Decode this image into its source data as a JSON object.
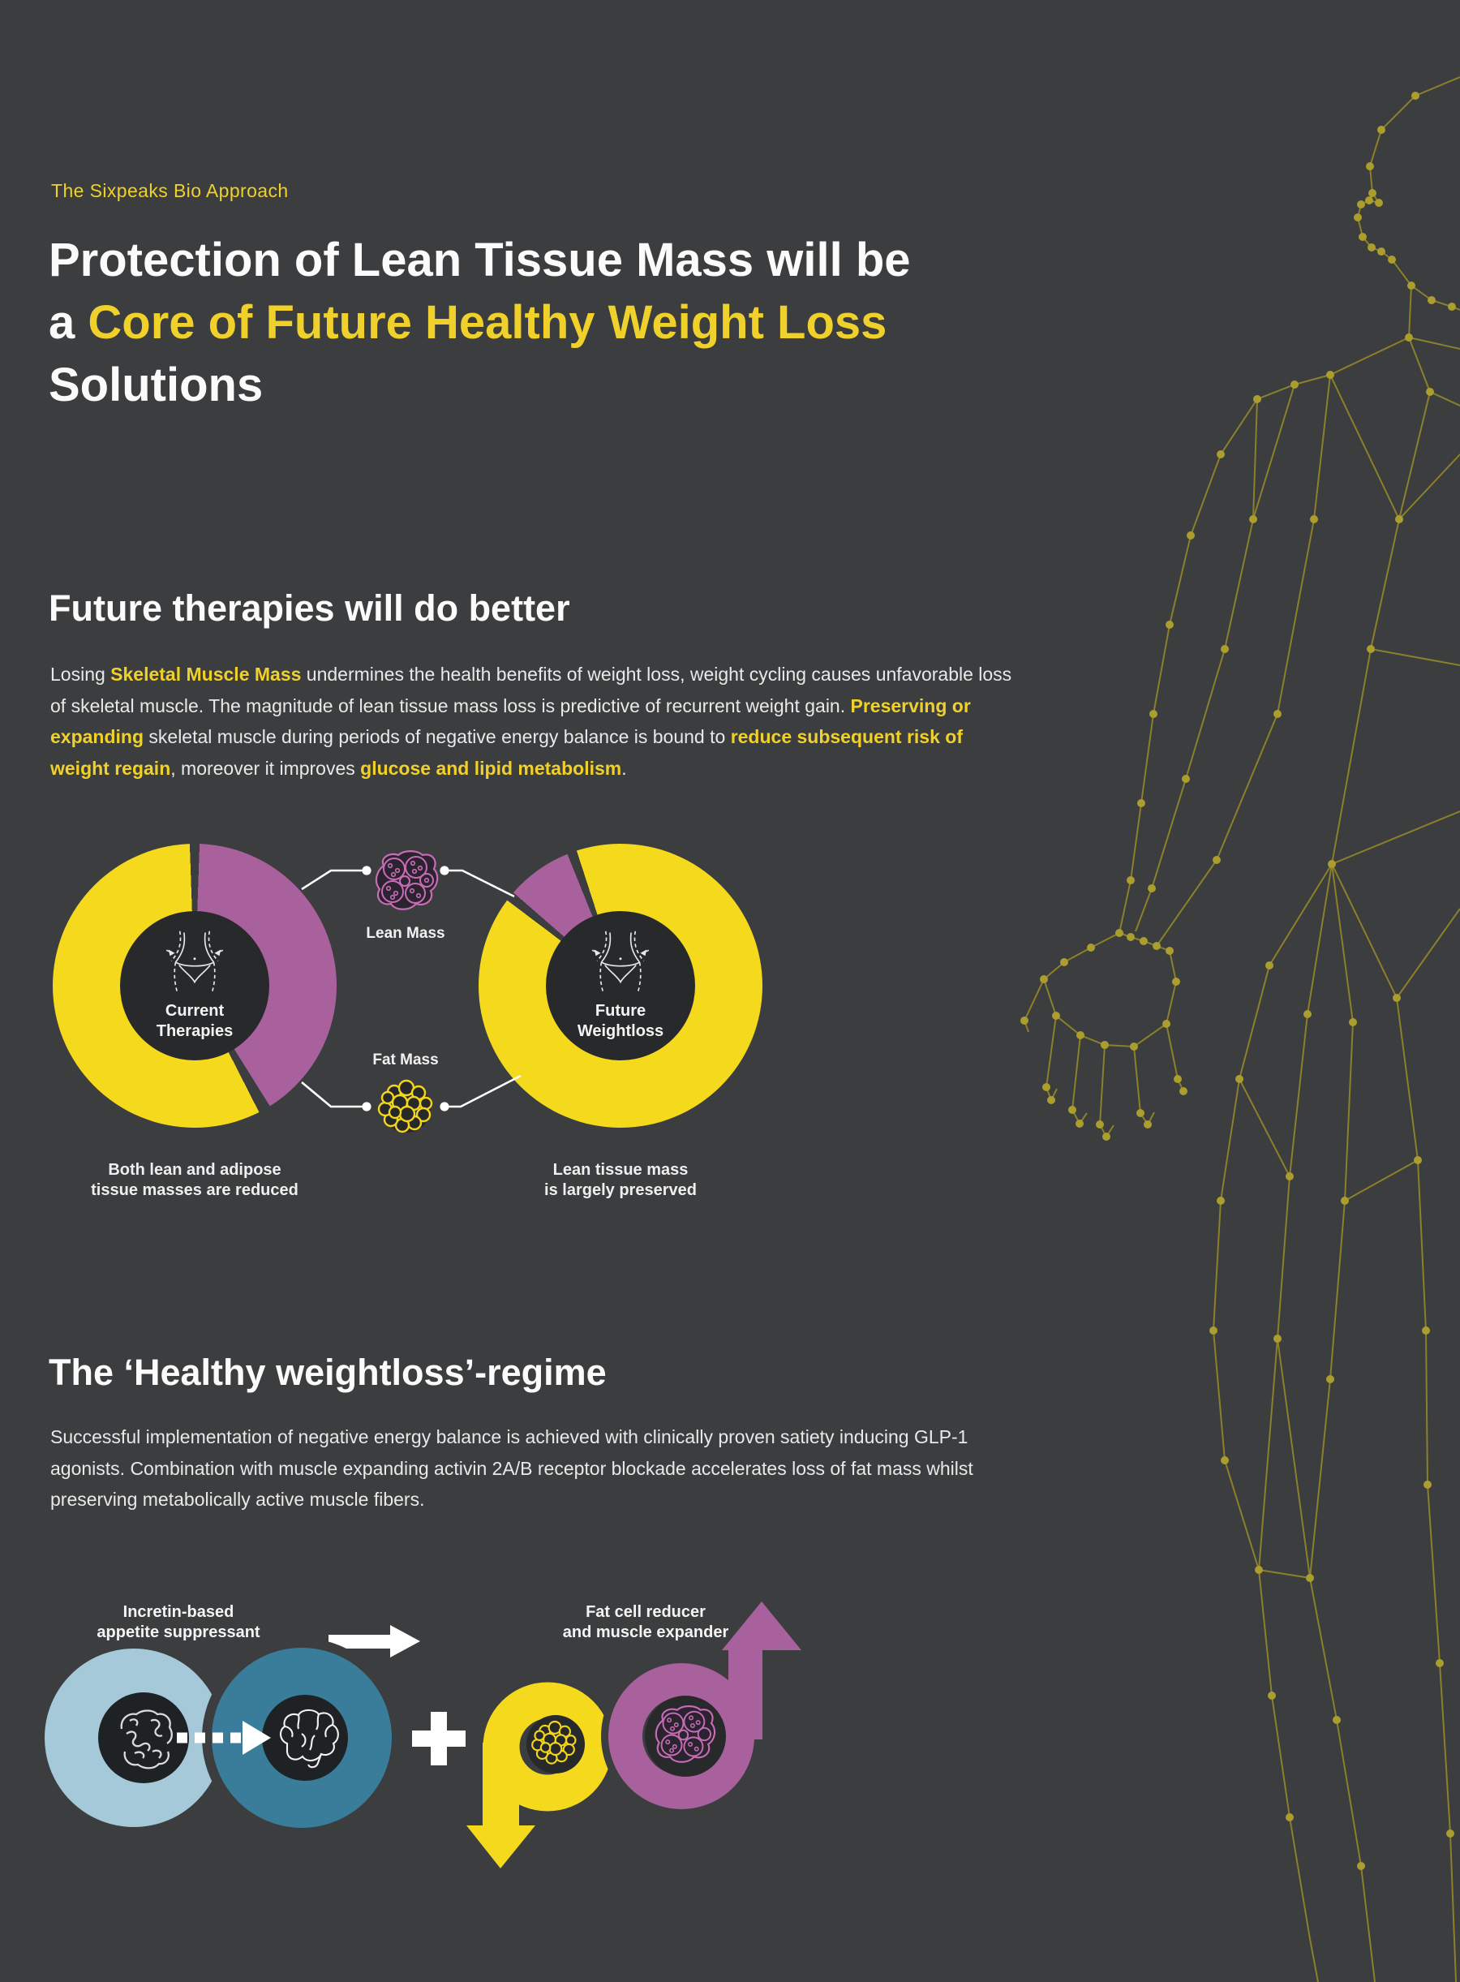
{
  "colors": {
    "background": "#3b3d3e",
    "accent_yellow": "#f5d91d",
    "text_yellow": "#f0d12b",
    "accent_purple": "#a8619d",
    "light_blue": "#a6c9da",
    "teal": "#3a7d9a",
    "dark_center": "#27292b",
    "plexus_olive": "#a89b2c"
  },
  "header": {
    "eyebrow": "The Sixpeaks Bio Approach",
    "title_line1": "Protection of Lean Tissue Mass will be",
    "title_line2_prefix": "a ",
    "title_line2_highlight": "Core of Future Healthy Weight Loss",
    "title_line3": "Solutions"
  },
  "future_section": {
    "heading": "Future therapies will do better",
    "paragraph": [
      {
        "t": "Losing ",
        "hl": false
      },
      {
        "t": "Skeletal Muscle Mass",
        "hl": true
      },
      {
        "t": " undermines the health benefits of weight loss, weight cycling causes unfavorable loss of skeletal muscle. The magnitude of lean tissue mass loss is predictive of recurrent weight gain. ",
        "hl": false
      },
      {
        "t": "Preserving or expanding",
        "hl": true
      },
      {
        "t": " skeletal muscle during periods of negative energy balance is bound to ",
        "hl": false
      },
      {
        "t": "reduce subsequent risk of weight regain",
        "hl": true
      },
      {
        "t": ", moreover it improves ",
        "hl": false
      },
      {
        "t": "glucose and lipid metabolism",
        "hl": true
      },
      {
        "t": ".",
        "hl": false
      }
    ]
  },
  "mass_legend": {
    "lean_label": "Lean Mass",
    "fat_label": "Fat Mass"
  },
  "donuts": {
    "left": {
      "label_line1": "Current",
      "label_line2": "Therapies",
      "caption_line1": "Both lean and adipose",
      "caption_line2": "tissue masses are reduced"
    },
    "right": {
      "label_line1": "Future",
      "label_line2": "Weightloss",
      "caption_line1": "Lean tissue mass",
      "caption_line2": "is largely preserved"
    }
  },
  "regime_section": {
    "heading": "The ‘Healthy weightloss’-regime",
    "paragraph": [
      {
        "t": "Successful implementation of negative energy balance is achieved with clinically proven satiety inducing GLP-1 agonists. Combination with muscle expanding activin 2A/B receptor blockade accelerates loss of fat mass whilst preserving metabolically active muscle fibers.",
        "hl": false
      }
    ]
  },
  "regime_diagram": {
    "left_label_line1": "Incretin-based",
    "left_label_line2": "appetite suppressant",
    "right_label_line1": "Fat cell reducer",
    "right_label_line2": "and muscle expander"
  },
  "chart_data": [
    {
      "type": "pie",
      "title": "Current Therapies",
      "labels": [
        "Lean Mass",
        "Fat Mass"
      ],
      "values": [
        41,
        59
      ],
      "colors": [
        "#a8619d",
        "#f5d91d"
      ],
      "annotation": "Both lean and adipose tissue masses are reduced",
      "legend_position": "between-charts"
    },
    {
      "type": "pie",
      "title": "Future Weightloss",
      "labels": [
        "Lean Mass",
        "Fat Mass"
      ],
      "values": [
        7,
        93
      ],
      "colors": [
        "#a8619d",
        "#f5d91d"
      ],
      "annotation": "Lean tissue mass is largely preserved",
      "legend_position": "between-charts"
    }
  ]
}
